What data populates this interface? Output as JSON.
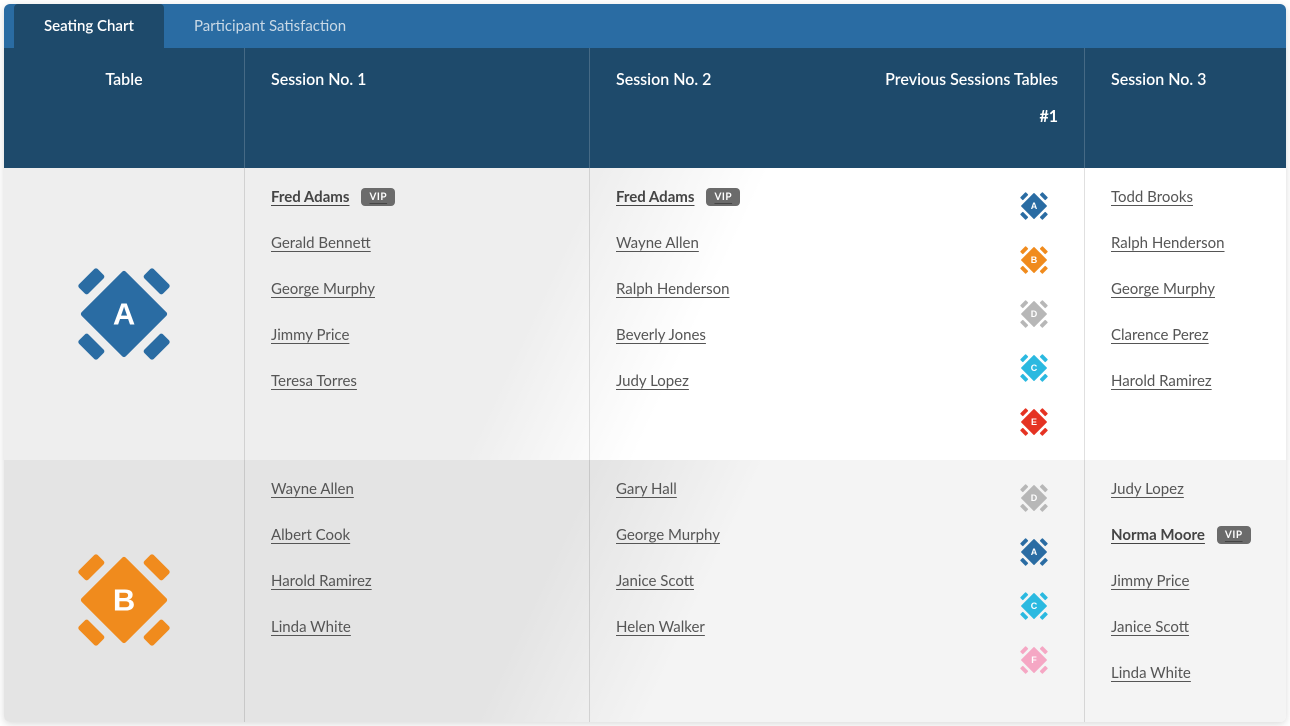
{
  "tabs": [
    {
      "label": "Seating Chart",
      "active": true
    },
    {
      "label": "Participant Satisfaction",
      "active": false
    }
  ],
  "header": {
    "table": "Table",
    "session1": "Session No. 1",
    "session2": "Session No. 2",
    "prev_sessions": "Previous Sessions Tables",
    "prev_sub": "#1",
    "session3": "Session No. 3"
  },
  "table_colors": {
    "A": "#2a6ca3",
    "B": "#f08b1d",
    "C": "#2bb9e0",
    "D": "#b7b7b7",
    "E": "#e53323",
    "F": "#f5a7c4"
  },
  "vip_label": "VIP",
  "icon_sizes": {
    "large": 120,
    "small": 36
  },
  "rows": [
    {
      "table_letter": "A",
      "table_color_key": "A",
      "session1": [
        {
          "name": "Fred Adams",
          "vip": true
        },
        {
          "name": "Gerald Bennett"
        },
        {
          "name": "George Murphy"
        },
        {
          "name": "Jimmy Price"
        },
        {
          "name": "Teresa Torres"
        }
      ],
      "session2": [
        {
          "name": "Fred Adams",
          "vip": true,
          "prev_table": "A"
        },
        {
          "name": "Wayne Allen",
          "prev_table": "B"
        },
        {
          "name": "Ralph Henderson",
          "prev_table": "D"
        },
        {
          "name": "Beverly Jones",
          "prev_table": "C"
        },
        {
          "name": "Judy Lopez",
          "prev_table": "E"
        }
      ],
      "session3": [
        {
          "name": "Todd Brooks"
        },
        {
          "name": "Ralph Henderson"
        },
        {
          "name": "George Murphy"
        },
        {
          "name": "Clarence Perez"
        },
        {
          "name": "Harold Ramirez"
        }
      ]
    },
    {
      "table_letter": "B",
      "table_color_key": "B",
      "session1": [
        {
          "name": "Wayne Allen"
        },
        {
          "name": "Albert Cook"
        },
        {
          "name": "Harold Ramirez"
        },
        {
          "name": "Linda White"
        }
      ],
      "session2": [
        {
          "name": "Gary Hall",
          "prev_table": "D"
        },
        {
          "name": "George Murphy",
          "prev_table": "A"
        },
        {
          "name": "Janice Scott",
          "prev_table": "C"
        },
        {
          "name": "Helen Walker",
          "prev_table": "F"
        }
      ],
      "session3": [
        {
          "name": "Judy Lopez"
        },
        {
          "name": "Norma Moore",
          "vip": true
        },
        {
          "name": "Jimmy Price"
        },
        {
          "name": "Janice Scott"
        },
        {
          "name": "Linda White"
        }
      ]
    }
  ]
}
